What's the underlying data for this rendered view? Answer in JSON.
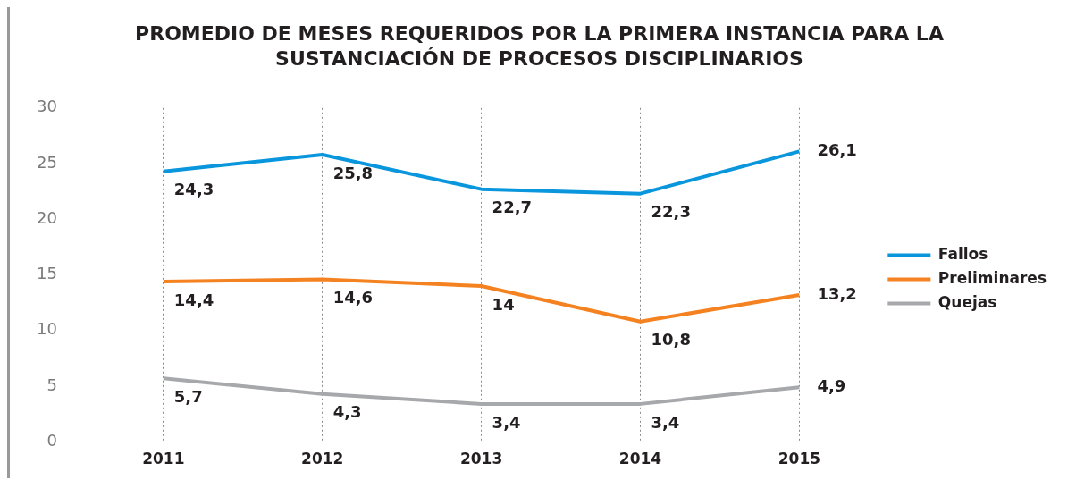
{
  "chart_data": {
    "type": "line",
    "title": "PROMEDIO DE MESES REQUERIDOS POR LA PRIMERA INSTANCIA PARA LA SUSTANCIACIÓN DE PROCESOS DISCIPLINARIOS",
    "categories": [
      "2011",
      "2012",
      "2013",
      "2014",
      "2015"
    ],
    "series": [
      {
        "name": "Fallos",
        "color": "#0a96dc",
        "values": [
          24.3,
          25.8,
          22.7,
          22.3,
          26.1
        ],
        "value_labels": [
          "24,3",
          "25,8",
          "22,7",
          "22,3",
          "26,1"
        ]
      },
      {
        "name": "Preliminares",
        "color": "#f58220",
        "values": [
          14.4,
          14.6,
          14,
          10.8,
          13.2
        ],
        "value_labels": [
          "14,4",
          "14,6",
          "14",
          "10,8",
          "13,2"
        ]
      },
      {
        "name": "Quejas",
        "color": "#a7a8ab",
        "values": [
          5.7,
          4.3,
          3.4,
          3.4,
          4.9
        ],
        "value_labels": [
          "5,7",
          "4,3",
          "3,4",
          "3,4",
          "4,9"
        ]
      }
    ],
    "ylim": [
      0,
      30
    ],
    "yticks": [
      0,
      5,
      10,
      15,
      20,
      25,
      30
    ],
    "grid": "x",
    "legend": "right",
    "marker": "none",
    "line_style": "solid"
  }
}
